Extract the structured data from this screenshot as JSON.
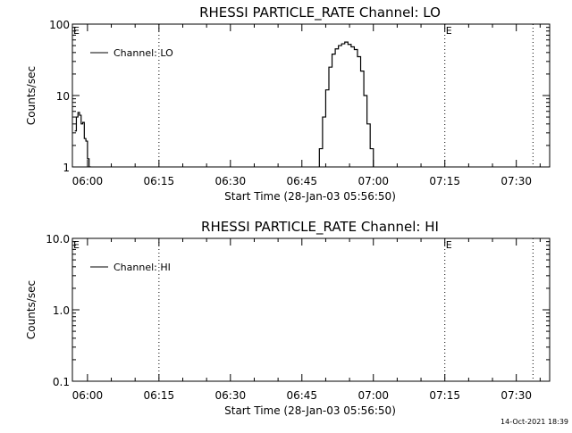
{
  "chart_data": [
    {
      "type": "line",
      "title": "RHESSI PARTICLE_RATE Channel: LO",
      "xlabel": "Start Time (28-Jan-03 05:56:50)",
      "ylabel": "Counts/sec",
      "yscale": "log",
      "ylim": [
        1,
        100
      ],
      "xlim": [
        "05:56:50",
        "07:37:00"
      ],
      "y_ticks": [
        1,
        10,
        100
      ],
      "y_tick_labels": [
        "1",
        "10",
        "100"
      ],
      "x_ticks": [
        "06:00",
        "06:15",
        "06:30",
        "06:45",
        "07:00",
        "07:15",
        "07:30"
      ],
      "x_tick_labels": [
        "06:00",
        "06:15",
        "06:30",
        "06:45",
        "07:00",
        "07:15",
        "07:30"
      ],
      "legend": {
        "location": "top-left",
        "entries": [
          "Channel: LO"
        ]
      },
      "markers": [
        {
          "time": "05:56:50",
          "label": "E"
        },
        {
          "time": "06:15:00",
          "label": ""
        },
        {
          "time": "07:15:00",
          "label": "E"
        },
        {
          "time": "07:33:30",
          "label": ""
        }
      ],
      "series": [
        {
          "name": "Channel: LO",
          "segments": [
            {
              "x": [
                "05:57:20",
                "05:57:40",
                "05:58:00",
                "05:58:20",
                "05:58:40",
                "05:59:00",
                "05:59:20",
                "05:59:40",
                "06:00:00",
                "06:00:20",
                "06:00:40"
              ],
              "y": [
                3.2,
                5.0,
                5.8,
                5.3,
                4.0,
                4.2,
                2.5,
                2.3,
                1.3,
                1.0,
                0.9
              ]
            },
            {
              "x": [
                "06:48:00",
                "06:48:40",
                "06:49:20",
                "06:50:00",
                "06:50:40",
                "06:51:20",
                "06:52:00",
                "06:52:40",
                "06:53:20",
                "06:54:00",
                "06:54:40",
                "06:55:20",
                "06:56:00",
                "06:56:40",
                "06:57:20",
                "06:58:00",
                "06:58:40",
                "06:59:20",
                "07:00:00"
              ],
              "y": [
                0.95,
                1.8,
                5.0,
                12,
                25,
                38,
                45,
                50,
                53,
                56,
                52,
                48,
                44,
                35,
                22,
                10,
                4.0,
                1.8,
                0.95
              ]
            }
          ]
        }
      ]
    },
    {
      "type": "line",
      "title": "RHESSI PARTICLE_RATE Channel: HI",
      "xlabel": "Start Time (28-Jan-03 05:56:50)",
      "ylabel": "Counts/sec",
      "yscale": "log",
      "ylim": [
        0.1,
        10
      ],
      "xlim": [
        "05:56:50",
        "07:37:00"
      ],
      "y_ticks": [
        0.1,
        1,
        10
      ],
      "y_tick_labels": [
        "0.1",
        "1.0",
        "10.0"
      ],
      "x_ticks": [
        "06:00",
        "06:15",
        "06:30",
        "06:45",
        "07:00",
        "07:15",
        "07:30"
      ],
      "x_tick_labels": [
        "06:00",
        "06:15",
        "06:30",
        "06:45",
        "07:00",
        "07:15",
        "07:30"
      ],
      "legend": {
        "location": "top-left",
        "entries": [
          "Channel: HI"
        ]
      },
      "markers": [
        {
          "time": "05:56:50",
          "label": "E"
        },
        {
          "time": "06:15:00",
          "label": ""
        },
        {
          "time": "07:15:00",
          "label": "E"
        },
        {
          "time": "07:33:30",
          "label": ""
        }
      ],
      "series": [
        {
          "name": "Channel: HI",
          "segments": []
        }
      ]
    }
  ],
  "footer": {
    "timestamp": "14-Oct-2021 18:39"
  }
}
